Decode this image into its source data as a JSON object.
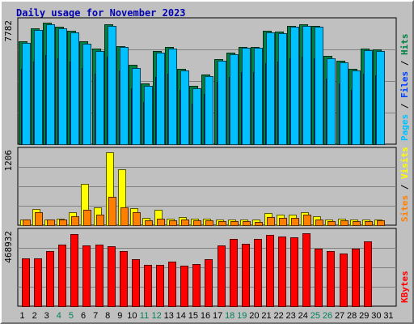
{
  "title": "Daily usage for November 2023",
  "chart_data": [
    {
      "type": "bar",
      "panel": "top",
      "max_label": "7782",
      "ylim": [
        0,
        7782
      ],
      "grid": true,
      "legend": [
        {
          "text": "Hits",
          "color": "#008040"
        },
        {
          "text": "Files",
          "color": "#0040ff"
        },
        {
          "text": "Pages",
          "color": "#00c0ff"
        }
      ],
      "categories": [
        "1",
        "2",
        "3",
        "4",
        "5",
        "6",
        "7",
        "8",
        "9",
        "10",
        "11",
        "12",
        "13",
        "14",
        "15",
        "16",
        "17",
        "18",
        "19",
        "20",
        "21",
        "22",
        "23",
        "24",
        "25",
        "26",
        "27",
        "28",
        "29",
        "30",
        "31"
      ],
      "series": [
        {
          "name": "Hits",
          "color": "#008040",
          "values": [
            6600,
            7400,
            7782,
            7500,
            7260,
            6600,
            6100,
            7700,
            6300,
            5060,
            3900,
            5950,
            6200,
            4850,
            3750,
            4450,
            5450,
            5850,
            6250,
            6250,
            7250,
            7200,
            7600,
            7700,
            7600,
            5650,
            5350,
            4800,
            6100,
            6050,
            null
          ]
        },
        {
          "name": "Files",
          "color": "#0040ff",
          "values": [
            4800,
            5300,
            5700,
            5500,
            5300,
            4900,
            4500,
            5600,
            4700,
            3600,
            2700,
            4300,
            4500,
            3500,
            2600,
            3200,
            4000,
            4300,
            4600,
            4600,
            5200,
            5300,
            5500,
            5600,
            5500,
            4200,
            3900,
            3500,
            4500,
            4400,
            null
          ]
        },
        {
          "name": "Pages",
          "color": "#00c0ff",
          "values": [
            6500,
            7300,
            7700,
            7400,
            7150,
            6450,
            5950,
            7600,
            6200,
            4900,
            3750,
            5850,
            6100,
            4700,
            3600,
            4350,
            5350,
            5750,
            6150,
            6150,
            7150,
            7100,
            7500,
            7600,
            7500,
            5500,
            5250,
            4700,
            6000,
            5950,
            null
          ]
        }
      ]
    },
    {
      "type": "bar",
      "panel": "middle",
      "max_label": "1206",
      "ylim": [
        0,
        1206
      ],
      "grid": true,
      "legend": [
        {
          "text": "Visits",
          "color": "#ffff00"
        },
        {
          "text": "Sites",
          "color": "#ff8000"
        }
      ],
      "categories": [
        "1",
        "2",
        "3",
        "4",
        "5",
        "6",
        "7",
        "8",
        "9",
        "10",
        "11",
        "12",
        "13",
        "14",
        "15",
        "16",
        "17",
        "18",
        "19",
        "20",
        "21",
        "22",
        "23",
        "24",
        "25",
        "26",
        "27",
        "28",
        "29",
        "30",
        "31"
      ],
      "series": [
        {
          "name": "Visits",
          "color": "#ffff00",
          "values": [
            100,
            270,
            100,
            110,
            220,
            690,
            300,
            1206,
            930,
            280,
            120,
            250,
            110,
            140,
            110,
            110,
            90,
            90,
            90,
            90,
            200,
            170,
            180,
            220,
            150,
            100,
            110,
            90,
            90,
            100,
            null
          ]
        },
        {
          "name": "Sites",
          "color": "#ff8000",
          "values": [
            90,
            220,
            90,
            100,
            150,
            250,
            170,
            470,
            300,
            210,
            80,
            110,
            80,
            90,
            80,
            80,
            70,
            70,
            70,
            60,
            130,
            120,
            120,
            170,
            100,
            70,
            80,
            70,
            70,
            80,
            null
          ]
        }
      ]
    },
    {
      "type": "bar",
      "panel": "bottom",
      "max_label": "468932",
      "ylim": [
        0,
        468932
      ],
      "grid": true,
      "legend": [
        {
          "text": "KBytes",
          "color": "#ff0000"
        }
      ],
      "categories": [
        "1",
        "2",
        "3",
        "4",
        "5",
        "6",
        "7",
        "8",
        "9",
        "10",
        "11",
        "12",
        "13",
        "14",
        "15",
        "16",
        "17",
        "18",
        "19",
        "20",
        "21",
        "22",
        "23",
        "24",
        "25",
        "26",
        "27",
        "28",
        "29",
        "30",
        "31"
      ],
      "series": [
        {
          "name": "KBytes",
          "color": "#ff0000",
          "values": [
            305000,
            310000,
            353000,
            398000,
            465000,
            390000,
            395000,
            385000,
            355000,
            303000,
            265000,
            268000,
            288000,
            258000,
            270000,
            300000,
            392000,
            433000,
            402000,
            430000,
            460000,
            450000,
            445000,
            468932,
            370000,
            355000,
            340000,
            370000,
            415000,
            null,
            null
          ]
        }
      ]
    }
  ],
  "x_axis": {
    "labels": [
      "1",
      "2",
      "3",
      "4",
      "5",
      "6",
      "7",
      "8",
      "9",
      "10",
      "11",
      "12",
      "13",
      "14",
      "15",
      "16",
      "17",
      "18",
      "19",
      "20",
      "21",
      "22",
      "23",
      "24",
      "25",
      "26",
      "27",
      "28",
      "29",
      "30",
      "31"
    ],
    "weekend_days": [
      "4",
      "5",
      "11",
      "12",
      "18",
      "19",
      "25",
      "26"
    ],
    "weekday_color": "#000000",
    "weekend_color": "#00805c"
  },
  "colors": {
    "background": "#c0c0c0",
    "plot_background": "#c0c0c0",
    "grid": "#808080",
    "title": "#0000b0",
    "border_light": "#ffffff",
    "border_dark": "#707070",
    "separator": "#000000"
  }
}
